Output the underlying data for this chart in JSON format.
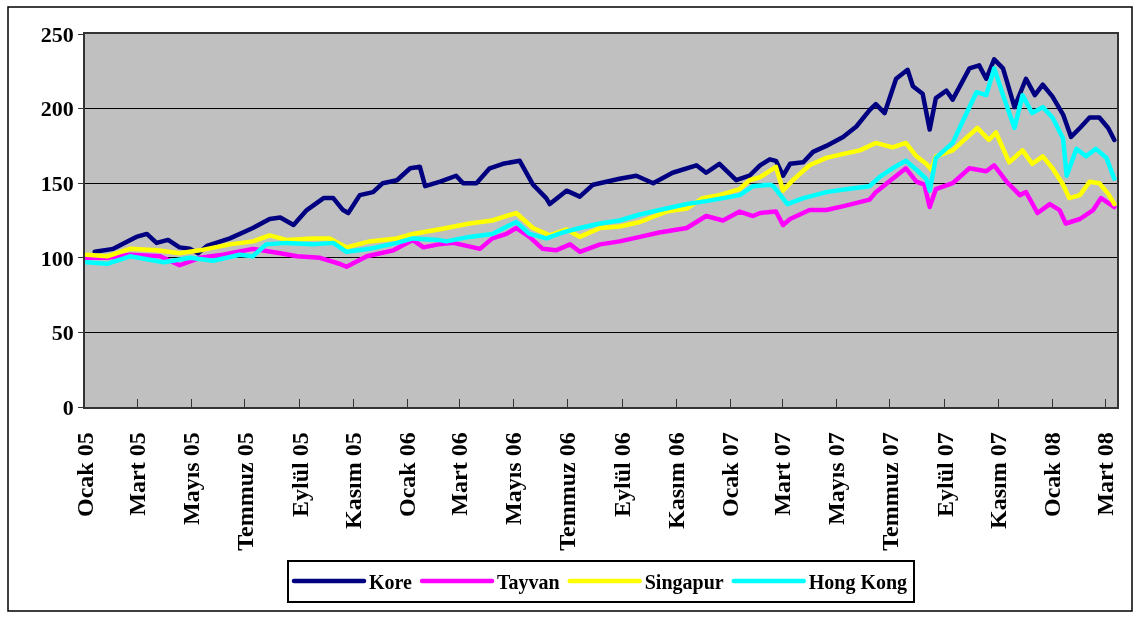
{
  "chart_data": {
    "type": "line",
    "xlim": [
      "2005-01-01",
      "2008-03-14"
    ],
    "xticks": [
      {
        "value": "2005-01-01",
        "label": "Ocak 05"
      },
      {
        "value": "2005-03-01",
        "label": "Mart 05"
      },
      {
        "value": "2005-05-01",
        "label": "Mayıs 05"
      },
      {
        "value": "2005-07-01",
        "label": "Temmuz 05"
      },
      {
        "value": "2005-09-01",
        "label": "Eylül 05"
      },
      {
        "value": "2005-11-01",
        "label": "Kasım 05"
      },
      {
        "value": "2006-01-01",
        "label": "Ocak 06"
      },
      {
        "value": "2006-03-01",
        "label": "Mart 06"
      },
      {
        "value": "2006-05-01",
        "label": "Mayıs 06"
      },
      {
        "value": "2006-07-01",
        "label": "Temmuz 06"
      },
      {
        "value": "2006-09-01",
        "label": "Eylül 06"
      },
      {
        "value": "2006-11-01",
        "label": "Kasım 06"
      },
      {
        "value": "2007-01-01",
        "label": "Ocak 07"
      },
      {
        "value": "2007-03-01",
        "label": "Mart 07"
      },
      {
        "value": "2007-05-01",
        "label": "Mayıs 07"
      },
      {
        "value": "2007-07-01",
        "label": "Temmuz 07"
      },
      {
        "value": "2007-09-01",
        "label": "Eylül 07"
      },
      {
        "value": "2007-11-01",
        "label": "Kasım 07"
      },
      {
        "value": "2008-01-01",
        "label": "Ocak 08"
      },
      {
        "value": "2008-03-01",
        "label": "Mart 08"
      }
    ],
    "ylim": [
      0,
      250
    ],
    "yticks": [
      0,
      50,
      100,
      150,
      200,
      250
    ],
    "grid": "y",
    "legend": "bottom",
    "line_style": "solid",
    "series": [
      {
        "name": "Kore",
        "color": "#000080",
        "x": [
          "2005-01-12",
          "2005-02-02",
          "2005-02-28",
          "2005-03-12",
          "2005-03-23",
          "2005-04-05",
          "2005-04-18",
          "2005-04-30",
          "2005-05-09",
          "2005-05-19",
          "2005-06-14",
          "2005-07-10",
          "2005-07-29",
          "2005-08-10",
          "2005-08-25",
          "2005-09-09",
          "2005-09-28",
          "2005-10-09",
          "2005-10-20",
          "2005-10-26",
          "2005-11-08",
          "2005-11-23",
          "2005-12-04",
          "2005-12-20",
          "2006-01-04",
          "2006-01-15",
          "2006-01-21",
          "2006-02-07",
          "2006-02-25",
          "2006-03-05",
          "2006-03-20",
          "2006-04-04",
          "2006-04-19",
          "2006-05-08",
          "2006-05-23",
          "2006-06-07",
          "2006-06-11",
          "2006-06-30",
          "2006-07-15",
          "2006-07-30",
          "2006-08-29",
          "2006-09-17",
          "2006-10-06",
          "2006-10-28",
          "2006-11-24",
          "2006-12-05",
          "2006-12-20",
          "2007-01-08",
          "2007-01-23",
          "2007-02-04",
          "2007-02-15",
          "2007-02-22",
          "2007-03-02",
          "2007-03-10",
          "2007-03-25",
          "2007-04-05",
          "2007-04-20",
          "2007-05-09",
          "2007-05-24",
          "2007-06-08",
          "2007-06-15",
          "2007-06-25",
          "2007-07-08",
          "2007-07-21",
          "2007-07-27",
          "2007-08-07",
          "2007-08-15",
          "2007-08-22",
          "2007-09-03",
          "2007-09-10",
          "2007-09-29",
          "2007-10-10",
          "2007-10-18",
          "2007-10-27",
          "2007-11-06",
          "2007-11-19",
          "2007-12-02",
          "2007-12-12",
          "2007-12-21",
          "2008-01-01",
          "2008-01-13",
          "2008-01-22",
          "2008-02-01",
          "2008-02-12",
          "2008-02-23",
          "2008-03-04",
          "2008-03-11"
        ],
        "values": [
          104,
          106,
          114,
          116,
          110,
          112,
          107,
          106,
          103,
          108,
          113,
          120,
          126,
          127,
          122,
          132,
          140,
          140,
          132,
          130,
          142,
          144,
          150,
          152,
          160,
          161,
          148,
          151,
          155,
          150,
          150,
          160,
          163,
          165,
          149,
          140,
          136,
          145,
          141,
          149,
          153,
          155,
          150,
          157,
          162,
          157,
          163,
          152,
          155,
          162,
          166,
          165,
          155,
          163,
          164,
          171,
          175,
          181,
          188,
          199,
          203,
          197,
          220,
          226,
          215,
          210,
          186,
          207,
          212,
          206,
          227,
          229,
          220,
          233,
          227,
          201,
          220,
          209,
          216,
          208,
          196,
          181,
          187,
          194,
          194,
          187,
          179
        ]
      },
      {
        "name": "Tayvan",
        "color": "#ff00ff",
        "x": [
          "2005-01-03",
          "2005-01-26",
          "2005-02-21",
          "2005-03-27",
          "2005-04-18",
          "2005-05-11",
          "2005-06-06",
          "2005-07-10",
          "2005-08-10",
          "2005-08-29",
          "2005-09-24",
          "2005-10-16",
          "2005-10-24",
          "2005-11-16",
          "2005-12-16",
          "2006-01-07",
          "2006-01-19",
          "2006-02-05",
          "2006-02-22",
          "2006-03-24",
          "2006-04-07",
          "2006-04-23",
          "2006-05-04",
          "2006-05-19",
          "2006-06-03",
          "2006-06-18",
          "2006-07-04",
          "2006-07-15",
          "2006-08-07",
          "2006-08-29",
          "2006-09-21",
          "2006-10-13",
          "2006-11-13",
          "2006-12-05",
          "2006-12-24",
          "2007-01-12",
          "2007-01-27",
          "2007-02-04",
          "2007-02-22",
          "2007-03-02",
          "2007-03-10",
          "2007-04-01",
          "2007-04-20",
          "2007-05-12",
          "2007-06-08",
          "2007-06-15",
          "2007-07-04",
          "2007-07-19",
          "2007-07-31",
          "2007-08-09",
          "2007-08-15",
          "2007-08-22",
          "2007-09-10",
          "2007-09-29",
          "2007-10-18",
          "2007-10-27",
          "2007-11-10",
          "2007-11-25",
          "2007-12-02",
          "2007-12-15",
          "2007-12-29",
          "2008-01-09",
          "2008-01-16",
          "2008-02-01",
          "2008-02-16",
          "2008-02-25",
          "2008-03-11"
        ],
        "values": [
          100,
          100,
          102,
          101,
          95,
          100,
          102,
          106,
          103,
          101,
          100,
          96,
          94,
          101,
          105,
          112,
          107,
          109,
          110,
          106,
          113,
          116,
          120,
          114,
          106,
          105,
          109,
          104,
          109,
          111,
          114,
          117,
          120,
          128,
          125,
          131,
          128,
          130,
          131,
          122,
          126,
          132,
          132,
          135,
          139,
          144,
          153,
          160,
          151,
          149,
          134,
          146,
          150,
          160,
          158,
          162,
          151,
          142,
          144,
          130,
          136,
          132,
          123,
          126,
          132,
          140,
          134
        ]
      },
      {
        "name": "Singapur",
        "color": "#ffff00",
        "x": [
          "2005-01-03",
          "2005-01-26",
          "2005-02-21",
          "2005-03-23",
          "2005-04-18",
          "2005-05-11",
          "2005-06-14",
          "2005-07-10",
          "2005-07-29",
          "2005-08-17",
          "2005-09-16",
          "2005-10-05",
          "2005-10-24",
          "2005-11-19",
          "2005-12-20",
          "2006-01-07",
          "2006-02-05",
          "2006-02-14",
          "2006-03-12",
          "2006-04-07",
          "2006-05-04",
          "2006-05-23",
          "2006-06-11",
          "2006-06-30",
          "2006-07-15",
          "2006-08-07",
          "2006-08-29",
          "2006-09-21",
          "2006-10-21",
          "2006-11-13",
          "2006-12-01",
          "2006-12-20",
          "2007-01-12",
          "2007-01-23",
          "2007-02-04",
          "2007-02-22",
          "2007-03-02",
          "2007-03-13",
          "2007-04-01",
          "2007-04-20",
          "2007-05-12",
          "2007-05-28",
          "2007-06-15",
          "2007-07-04",
          "2007-07-19",
          "2007-07-31",
          "2007-08-11",
          "2007-08-17",
          "2007-08-22",
          "2007-09-10",
          "2007-09-25",
          "2007-10-08",
          "2007-10-21",
          "2007-10-29",
          "2007-11-13",
          "2007-11-28",
          "2007-12-09",
          "2007-12-21",
          "2008-01-01",
          "2008-01-13",
          "2008-01-20",
          "2008-02-01",
          "2008-02-12",
          "2008-02-23",
          "2008-03-04",
          "2008-03-11"
        ],
        "values": [
          102,
          101,
          106,
          105,
          103,
          105,
          109,
          111,
          115,
          112,
          113,
          113,
          107,
          111,
          113,
          116,
          119,
          120,
          123,
          125,
          130,
          120,
          115,
          119,
          114,
          120,
          121,
          124,
          131,
          133,
          140,
          142,
          146,
          152,
          154,
          161,
          145,
          152,
          162,
          167,
          170,
          172,
          177,
          174,
          177,
          168,
          163,
          159,
          168,
          172,
          180,
          187,
          179,
          184,
          164,
          172,
          163,
          168,
          160,
          149,
          140,
          142,
          151,
          150,
          143,
          136
        ]
      },
      {
        "name": "Hong Kong",
        "color": "#00ffff",
        "x": [
          "2005-01-03",
          "2005-01-26",
          "2005-02-21",
          "2005-03-31",
          "2005-04-30",
          "2005-05-26",
          "2005-06-25",
          "2005-07-10",
          "2005-07-25",
          "2005-08-17",
          "2005-09-16",
          "2005-10-09",
          "2005-10-24",
          "2005-11-19",
          "2005-12-20",
          "2006-01-07",
          "2006-02-05",
          "2006-02-14",
          "2006-03-12",
          "2006-04-07",
          "2006-05-04",
          "2006-05-19",
          "2006-06-07",
          "2006-06-26",
          "2006-07-15",
          "2006-08-07",
          "2006-08-29",
          "2006-09-21",
          "2006-10-21",
          "2006-11-13",
          "2006-12-05",
          "2006-12-24",
          "2007-01-12",
          "2007-01-27",
          "2007-02-15",
          "2007-02-19",
          "2007-03-07",
          "2007-03-25",
          "2007-04-20",
          "2007-05-12",
          "2007-06-08",
          "2007-06-19",
          "2007-07-04",
          "2007-07-19",
          "2007-07-31",
          "2007-08-11",
          "2007-08-15",
          "2007-08-22",
          "2007-09-10",
          "2007-09-25",
          "2007-10-07",
          "2007-10-18",
          "2007-10-27",
          "2007-11-06",
          "2007-11-19",
          "2007-11-28",
          "2007-12-09",
          "2007-12-21",
          "2008-01-01",
          "2008-01-13",
          "2008-01-17",
          "2008-01-28",
          "2008-02-08",
          "2008-02-19",
          "2008-03-02",
          "2008-03-11"
        ],
        "values": [
          97,
          96,
          101,
          97,
          100,
          98,
          102,
          101,
          109,
          110,
          109,
          110,
          104,
          106,
          110,
          113,
          112,
          111,
          114,
          116,
          124,
          116,
          113,
          117,
          120,
          123,
          125,
          129,
          133,
          136,
          138,
          140,
          142,
          148,
          149,
          148,
          136,
          140,
          144,
          146,
          148,
          154,
          160,
          165,
          159,
          153,
          145,
          167,
          177,
          196,
          211,
          209,
          227,
          209,
          187,
          209,
          197,
          201,
          194,
          180,
          155,
          173,
          168,
          173,
          167,
          153
        ]
      }
    ]
  }
}
